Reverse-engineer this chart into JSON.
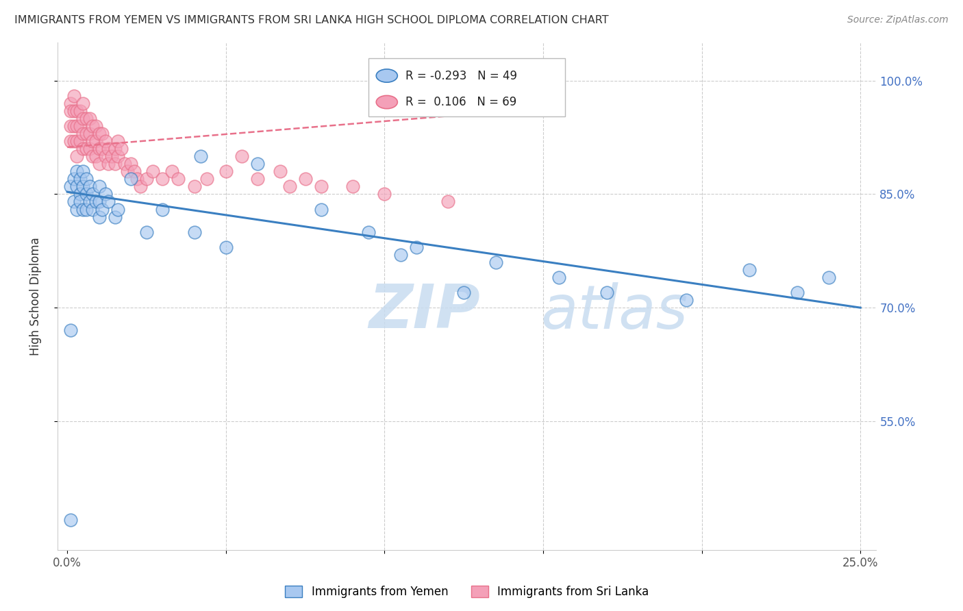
{
  "title": "IMMIGRANTS FROM YEMEN VS IMMIGRANTS FROM SRI LANKA HIGH SCHOOL DIPLOMA CORRELATION CHART",
  "source": "Source: ZipAtlas.com",
  "ylabel": "High School Diploma",
  "legend_blue_R": "-0.293",
  "legend_blue_N": "49",
  "legend_pink_R": "0.106",
  "legend_pink_N": "69",
  "blue_color": "#A8C8F0",
  "pink_color": "#F4A0B8",
  "trend_blue_color": "#3A7FC1",
  "trend_pink_color": "#E8708A",
  "ytick_values": [
    0.55,
    0.7,
    0.85,
    1.0
  ],
  "ytick_labels": [
    "55.0%",
    "70.0%",
    "85.0%",
    "100.0%"
  ],
  "xlim": [
    -0.003,
    0.255
  ],
  "ylim": [
    0.38,
    1.05
  ],
  "blue_trend_x": [
    0.0,
    0.25
  ],
  "blue_trend_y": [
    0.853,
    0.7
  ],
  "pink_trend_x": [
    0.0,
    0.125
  ],
  "pink_trend_y": [
    0.912,
    0.955
  ],
  "blue_x": [
    0.001,
    0.001,
    0.002,
    0.002,
    0.003,
    0.003,
    0.003,
    0.004,
    0.004,
    0.004,
    0.005,
    0.005,
    0.005,
    0.006,
    0.006,
    0.006,
    0.007,
    0.007,
    0.008,
    0.008,
    0.009,
    0.01,
    0.01,
    0.01,
    0.011,
    0.012,
    0.013,
    0.015,
    0.016,
    0.02,
    0.025,
    0.03,
    0.04,
    0.05,
    0.06,
    0.08,
    0.095,
    0.105,
    0.11,
    0.125,
    0.135,
    0.155,
    0.17,
    0.195,
    0.215,
    0.23,
    0.24,
    0.001,
    0.042
  ],
  "blue_y": [
    0.42,
    0.86,
    0.84,
    0.87,
    0.88,
    0.86,
    0.83,
    0.85,
    0.87,
    0.84,
    0.88,
    0.86,
    0.83,
    0.87,
    0.85,
    0.83,
    0.86,
    0.84,
    0.85,
    0.83,
    0.84,
    0.86,
    0.84,
    0.82,
    0.83,
    0.85,
    0.84,
    0.82,
    0.83,
    0.87,
    0.8,
    0.83,
    0.8,
    0.78,
    0.89,
    0.83,
    0.8,
    0.77,
    0.78,
    0.72,
    0.76,
    0.74,
    0.72,
    0.71,
    0.75,
    0.72,
    0.74,
    0.67,
    0.9
  ],
  "pink_x": [
    0.001,
    0.001,
    0.001,
    0.001,
    0.002,
    0.002,
    0.002,
    0.002,
    0.003,
    0.003,
    0.003,
    0.003,
    0.004,
    0.004,
    0.004,
    0.005,
    0.005,
    0.005,
    0.005,
    0.006,
    0.006,
    0.006,
    0.007,
    0.007,
    0.007,
    0.008,
    0.008,
    0.008,
    0.009,
    0.009,
    0.009,
    0.01,
    0.01,
    0.01,
    0.011,
    0.011,
    0.012,
    0.012,
    0.013,
    0.013,
    0.014,
    0.015,
    0.015,
    0.016,
    0.016,
    0.017,
    0.018,
    0.019,
    0.02,
    0.021,
    0.022,
    0.023,
    0.025,
    0.027,
    0.03,
    0.033,
    0.035,
    0.04,
    0.044,
    0.05,
    0.055,
    0.06,
    0.067,
    0.07,
    0.075,
    0.08,
    0.09,
    0.1,
    0.12
  ],
  "pink_y": [
    0.97,
    0.96,
    0.94,
    0.92,
    0.98,
    0.96,
    0.94,
    0.92,
    0.96,
    0.94,
    0.92,
    0.9,
    0.96,
    0.94,
    0.92,
    0.97,
    0.95,
    0.93,
    0.91,
    0.95,
    0.93,
    0.91,
    0.95,
    0.93,
    0.91,
    0.94,
    0.92,
    0.9,
    0.94,
    0.92,
    0.9,
    0.93,
    0.91,
    0.89,
    0.93,
    0.91,
    0.92,
    0.9,
    0.91,
    0.89,
    0.9,
    0.91,
    0.89,
    0.92,
    0.9,
    0.91,
    0.89,
    0.88,
    0.89,
    0.88,
    0.87,
    0.86,
    0.87,
    0.88,
    0.87,
    0.88,
    0.87,
    0.86,
    0.87,
    0.88,
    0.9,
    0.87,
    0.88,
    0.86,
    0.87,
    0.86,
    0.86,
    0.85,
    0.84
  ]
}
